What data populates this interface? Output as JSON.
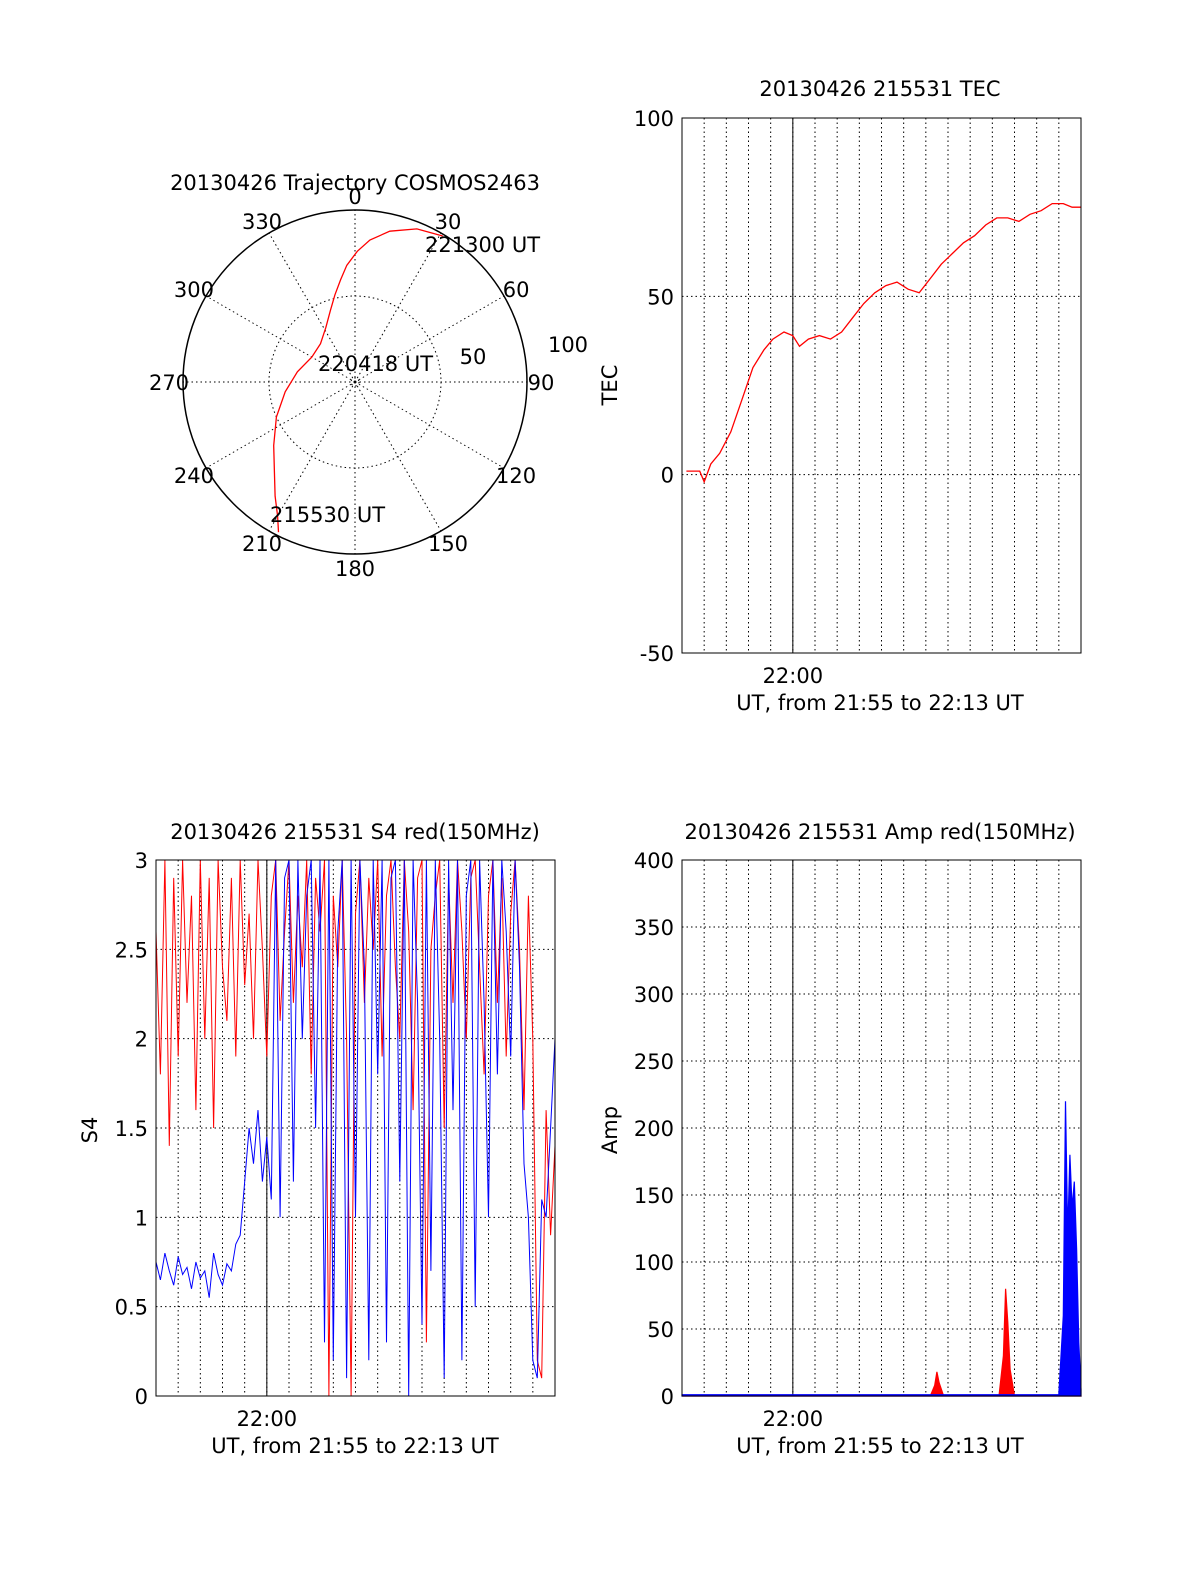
{
  "chart_data": [
    {
      "type": "polar",
      "title": "20130426 Trajectory COSMOS2463",
      "angle_labels": [
        "0",
        "30",
        "60",
        "90",
        "120",
        "150",
        "180",
        "210",
        "240",
        "270",
        "300",
        "330"
      ],
      "radius_labels": [
        "50",
        "100"
      ],
      "radius_range": [
        0,
        100
      ],
      "grid": true,
      "series": [
        {
          "color": "#ff0000",
          "azimuth": [
            207,
            210,
            215,
            222,
            232,
            246,
            262,
            280,
            300,
            318,
            332,
            341,
            347,
            352,
            356,
            1,
            6,
            13,
            22,
            31
          ],
          "distance": [
            98,
            90,
            81,
            70,
            60,
            50,
            41,
            34,
            29,
            30,
            36,
            44,
            52,
            60,
            68,
            76,
            83,
            90,
            96,
            99
          ]
        }
      ],
      "annotations": [
        "221300 UT",
        "220418 UT",
        "215530 UT"
      ]
    },
    {
      "type": "line",
      "title": "20130426 215531 TEC",
      "xlabel": "UT, from 21:55 to 22:13 UT",
      "ylabel": "TEC",
      "x_ticks": [
        "22:00"
      ],
      "y_ticks": [
        "-50",
        "0",
        "50",
        "100"
      ],
      "xlim": [
        0,
        18
      ],
      "ylim": [
        -50,
        100
      ],
      "grid": true,
      "series": [
        {
          "color": "#ff0000",
          "x": [
            0.2,
            0.8,
            1.0,
            1.3,
            1.7,
            2.2,
            2.7,
            3.2,
            3.7,
            4.1,
            4.6,
            5.0,
            5.3,
            5.7,
            6.2,
            6.7,
            7.2,
            7.7,
            8.2,
            8.7,
            9.2,
            9.7,
            10.2,
            10.7,
            11.2,
            11.7,
            12.2,
            12.7,
            13.2,
            13.7,
            14.2,
            14.7,
            15.2,
            15.7,
            16.2,
            16.7,
            17.2,
            17.6,
            18.0
          ],
          "y": [
            1,
            1,
            -2,
            3,
            6,
            12,
            21,
            30,
            35,
            38,
            40,
            39,
            36,
            38,
            39,
            38,
            40,
            44,
            48,
            51,
            53,
            54,
            52,
            51,
            55,
            59,
            62,
            65,
            67,
            70,
            72,
            72,
            71,
            73,
            74,
            76,
            76,
            75,
            75
          ]
        }
      ]
    },
    {
      "type": "line",
      "title": "20130426 215531 S4 red(150MHz)",
      "xlabel": "UT, from 21:55 to 22:13 UT",
      "ylabel": "S4",
      "x_ticks": [
        "22:00"
      ],
      "y_ticks": [
        "0",
        "0.5",
        "1",
        "1.5",
        "2",
        "2.5",
        "3"
      ],
      "xlim": [
        0,
        18
      ],
      "ylim": [
        0,
        3
      ],
      "grid": true,
      "series": [
        {
          "color": "#ff0000",
          "x": [
            0.0,
            0.2,
            0.4,
            0.6,
            0.8,
            1.0,
            1.2,
            1.4,
            1.6,
            1.8,
            2.0,
            2.2,
            2.4,
            2.6,
            2.8,
            3.0,
            3.2,
            3.4,
            3.6,
            3.8,
            4.0,
            4.2,
            4.4,
            4.6,
            4.8,
            5.0,
            5.2,
            5.4,
            5.6,
            5.8,
            6.0,
            6.2,
            6.4,
            6.6,
            6.8,
            7.0,
            7.2,
            7.4,
            7.6,
            7.8,
            8.0,
            8.2,
            8.4,
            8.6,
            8.8,
            9.0,
            9.2,
            9.4,
            9.6,
            9.8,
            10.0,
            10.2,
            10.4,
            10.6,
            10.8,
            11.0,
            11.2,
            11.4,
            11.6,
            11.8,
            12.0,
            12.2,
            12.4,
            12.6,
            12.8,
            13.0,
            13.2,
            13.4,
            13.6,
            13.8,
            14.0,
            14.2,
            14.4,
            14.6,
            14.8,
            15.0,
            15.2,
            15.4,
            15.6,
            15.8,
            16.0,
            16.2,
            16.4,
            16.6,
            16.8,
            17.0,
            17.2,
            17.4,
            17.6,
            17.8,
            18.0
          ],
          "y": [
            2.6,
            1.8,
            3.0,
            1.4,
            2.9,
            1.9,
            3.0,
            2.2,
            2.8,
            1.6,
            3.0,
            2.0,
            2.9,
            1.5,
            3.0,
            2.4,
            2.1,
            2.9,
            1.9,
            3.0,
            2.3,
            2.7,
            2.0,
            3.0,
            2.5,
            1.9,
            2.8,
            3.0,
            2.1,
            2.6,
            3.0,
            2.2,
            2.8,
            2.4,
            3.0,
            1.8,
            2.9,
            2.6,
            3.0,
            0.0,
            2.8,
            2.4,
            3.0,
            2.0,
            0.0,
            2.7,
            3.0,
            2.2,
            2.9,
            2.5,
            3.0,
            1.9,
            2.8,
            3.0,
            2.4,
            2.0,
            3.0,
            2.6,
            1.6,
            2.9,
            3.0,
            0.3,
            2.5,
            2.8,
            3.0,
            1.5,
            2.9,
            2.2,
            3.0,
            2.6,
            2.0,
            2.9,
            3.0,
            2.4,
            1.8,
            2.8,
            3.0,
            2.2,
            2.9,
            1.9,
            2.7,
            3.0,
            2.5,
            1.6,
            2.8,
            2.0,
            0.2,
            0.1,
            1.6,
            0.9,
            1.4
          ]
        },
        {
          "color": "#0000ff",
          "x": [
            0.0,
            0.2,
            0.4,
            0.6,
            0.8,
            1.0,
            1.2,
            1.4,
            1.6,
            1.8,
            2.0,
            2.2,
            2.4,
            2.6,
            2.8,
            3.0,
            3.2,
            3.4,
            3.6,
            3.8,
            4.0,
            4.2,
            4.4,
            4.6,
            4.8,
            5.0,
            5.2,
            5.4,
            5.6,
            5.8,
            6.0,
            6.2,
            6.4,
            6.6,
            6.8,
            7.0,
            7.2,
            7.4,
            7.6,
            7.8,
            8.0,
            8.2,
            8.4,
            8.6,
            8.8,
            9.0,
            9.2,
            9.4,
            9.6,
            9.8,
            10.0,
            10.2,
            10.4,
            10.6,
            10.8,
            11.0,
            11.2,
            11.4,
            11.6,
            11.8,
            12.0,
            12.2,
            12.4,
            12.6,
            12.8,
            13.0,
            13.2,
            13.4,
            13.6,
            13.8,
            14.0,
            14.2,
            14.4,
            14.6,
            14.8,
            15.0,
            15.2,
            15.4,
            15.6,
            15.8,
            16.0,
            16.2,
            16.4,
            16.6,
            16.8,
            17.0,
            17.2,
            17.4,
            17.6,
            17.8,
            18.0
          ],
          "y": [
            0.75,
            0.65,
            0.8,
            0.7,
            0.62,
            0.78,
            0.68,
            0.72,
            0.6,
            0.75,
            0.66,
            0.7,
            0.55,
            0.8,
            0.68,
            0.62,
            0.74,
            0.7,
            0.85,
            0.9,
            1.2,
            1.5,
            1.3,
            1.6,
            1.2,
            1.45,
            1.1,
            3.0,
            1.0,
            2.9,
            3.0,
            1.2,
            3.0,
            2.0,
            2.8,
            3.0,
            1.5,
            3.0,
            0.3,
            3.0,
            0.2,
            2.6,
            3.0,
            0.1,
            3.0,
            1.0,
            3.0,
            2.4,
            0.2,
            3.0,
            1.8,
            3.0,
            0.3,
            2.9,
            3.0,
            1.2,
            3.0,
            0.0,
            3.0,
            2.2,
            0.4,
            3.0,
            0.7,
            3.0,
            2.0,
            0.1,
            3.0,
            1.6,
            3.0,
            0.2,
            2.8,
            3.0,
            0.5,
            3.0,
            2.2,
            1.0,
            3.0,
            1.8,
            3.0,
            2.6,
            1.9,
            3.0,
            2.4,
            1.3,
            1.0,
            0.2,
            0.1,
            1.1,
            1.0,
            1.5,
            2.0
          ]
        }
      ]
    },
    {
      "type": "area",
      "title": "20130426 215531 Amp red(150MHz)",
      "xlabel": "UT, from 21:55 to 22:13 UT",
      "ylabel": "Amp",
      "x_ticks": [
        "22:00"
      ],
      "y_ticks": [
        "0",
        "50",
        "100",
        "150",
        "200",
        "250",
        "300",
        "350",
        "400"
      ],
      "xlim": [
        0,
        18
      ],
      "ylim": [
        0,
        400
      ],
      "grid": true,
      "series": [
        {
          "color": "#ff0000",
          "x": [
            0.0,
            11.2,
            11.4,
            11.5,
            11.6,
            11.8,
            14.3,
            14.5,
            14.6,
            14.7,
            14.8,
            15.0,
            17.2,
            17.3,
            17.4,
            17.5,
            17.6,
            17.7,
            17.8,
            18.0
          ],
          "y": [
            0,
            0,
            8,
            18,
            10,
            0,
            0,
            30,
            80,
            55,
            20,
            0,
            0,
            20,
            35,
            60,
            80,
            45,
            20,
            0
          ]
        },
        {
          "color": "#0000ff",
          "x": [
            0.0,
            1.0,
            2.0,
            3.0,
            4.0,
            5.0,
            6.0,
            7.0,
            8.0,
            9.0,
            10.0,
            11.0,
            12.0,
            13.0,
            14.0,
            15.0,
            16.0,
            17.0,
            17.2,
            17.3,
            17.4,
            17.5,
            17.6,
            17.7,
            17.8,
            17.9,
            18.0
          ],
          "y": [
            1,
            1,
            1,
            1,
            1,
            1,
            1,
            1,
            1,
            1,
            1,
            1,
            1,
            1,
            1,
            1,
            1,
            1,
            60,
            220,
            120,
            180,
            140,
            160,
            110,
            40,
            5
          ]
        }
      ]
    }
  ]
}
